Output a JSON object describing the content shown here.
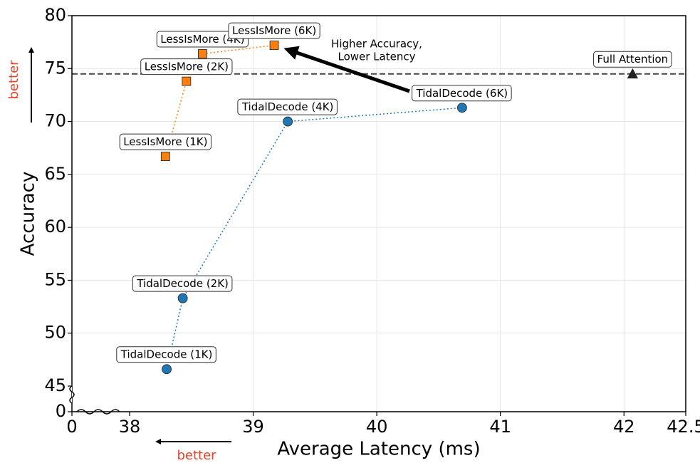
{
  "chart_data": {
    "type": "scatter",
    "xlabel": "Average Latency (ms)",
    "ylabel": "Accuracy",
    "xlim": [
      0,
      42.5
    ],
    "ylim": [
      0,
      80
    ],
    "x_break": [
      0,
      38
    ],
    "y_break": [
      0,
      45
    ],
    "xticks": [
      0,
      38,
      39,
      40,
      41,
      42,
      42.5
    ],
    "yticks": [
      0,
      45,
      50,
      55,
      60,
      65,
      70,
      75,
      80
    ],
    "grid": true,
    "hline": 74.5,
    "series": [
      {
        "color": "#ff7f0e",
        "marker": "square",
        "connect": true,
        "x": [
          38.29,
          38.46,
          38.59,
          39.17
        ],
        "values": [
          66.7,
          73.8,
          76.4,
          77.2
        ],
        "labels": [
          "LessIsMore (1K)",
          "LessIsMore (2K)",
          "LessIsMore (4K)",
          "LessIsMore (6K)"
        ]
      },
      {
        "color": "#1f77b4",
        "marker": "circle",
        "connect": true,
        "x": [
          38.3,
          38.43,
          39.28,
          40.69
        ],
        "values": [
          46.6,
          53.3,
          70.0,
          71.3
        ],
        "labels": [
          "TidalDecode (1K)",
          "TidalDecode (2K)",
          "TidalDecode (4K)",
          "TidalDecode (6K)"
        ]
      },
      {
        "color": "#222222",
        "marker": "triangle",
        "connect": false,
        "x": [
          42.07
        ],
        "values": [
          74.5
        ],
        "labels": [
          "Full Attention"
        ]
      }
    ],
    "annotation": [
      "Higher Accuracy,",
      "Lower Latency"
    ],
    "better_label": "better"
  }
}
